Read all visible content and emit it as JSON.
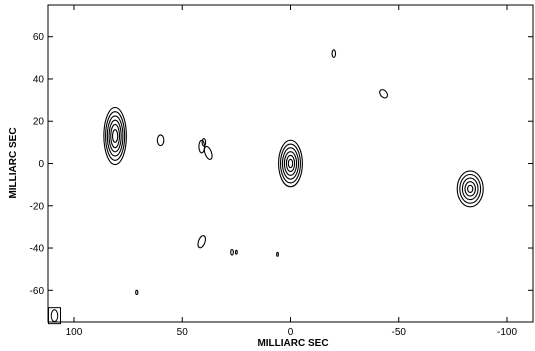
{
  "chart_data": {
    "type": "contour",
    "xlabel": "MILLIARC SEC",
    "ylabel": "MILLIARC SEC",
    "xlim": [
      112,
      -112
    ],
    "ylim": [
      -75,
      75
    ],
    "x_ticks": [
      100,
      50,
      0,
      -50,
      -100
    ],
    "y_ticks": [
      60,
      40,
      20,
      0,
      -20,
      -40,
      -60
    ],
    "x_tick_labels": [
      "100",
      "50",
      "0",
      "-50",
      "-100"
    ],
    "y_tick_labels": [
      "60",
      "40",
      "20",
      "0",
      "-20",
      "-40",
      "-60"
    ],
    "grid": false,
    "components": [
      {
        "x": 81,
        "y": 13,
        "rx_levels": [
          5.2,
          4.4,
          3.6,
          2.8,
          2.0,
          1.2
        ],
        "ry_levels": [
          13.5,
          11.5,
          9.5,
          7.5,
          5.5,
          3.0
        ],
        "rotation": 0
      },
      {
        "x": 0,
        "y": 0,
        "rx_levels": [
          5.5,
          4.6,
          3.7,
          2.8,
          1.9,
          1.0
        ],
        "ry_levels": [
          11.0,
          9.2,
          7.4,
          5.6,
          3.8,
          2.0
        ],
        "rotation": 0
      },
      {
        "x": -83,
        "y": -12,
        "rx_levels": [
          6.0,
          4.8,
          3.6,
          2.4,
          1.2
        ],
        "ry_levels": [
          8.5,
          6.8,
          5.1,
          3.4,
          1.7
        ],
        "rotation": 0
      },
      {
        "x": 60,
        "y": 11,
        "rx_levels": [
          1.5
        ],
        "ry_levels": [
          2.5
        ],
        "rotation": 0
      },
      {
        "x": 41,
        "y": 8,
        "rx_levels": [
          1.3
        ],
        "ry_levels": [
          3.0
        ],
        "rotation": 0
      },
      {
        "x": 38,
        "y": 5,
        "rx_levels": [
          1.5
        ],
        "ry_levels": [
          3.2
        ],
        "rotation": -20
      },
      {
        "x": 40,
        "y": 10,
        "rx_levels": [
          0.8
        ],
        "ry_levels": [
          1.8
        ],
        "rotation": 0
      },
      {
        "x": 41,
        "y": -37,
        "rx_levels": [
          1.5
        ],
        "ry_levels": [
          3.0
        ],
        "rotation": 20
      },
      {
        "x": -43,
        "y": 33,
        "rx_levels": [
          1.5
        ],
        "ry_levels": [
          2.2
        ],
        "rotation": -40
      },
      {
        "x": -20,
        "y": 52,
        "rx_levels": [
          0.8
        ],
        "ry_levels": [
          1.8
        ],
        "rotation": 0
      },
      {
        "x": 27,
        "y": -42,
        "rx_levels": [
          0.6
        ],
        "ry_levels": [
          1.3
        ],
        "rotation": 0
      },
      {
        "x": 25,
        "y": -42,
        "rx_levels": [
          0.4
        ],
        "ry_levels": [
          0.9
        ],
        "rotation": 0
      },
      {
        "x": 6,
        "y": -43,
        "rx_levels": [
          0.4
        ],
        "ry_levels": [
          0.9
        ],
        "rotation": 0
      },
      {
        "x": 71,
        "y": -61,
        "rx_levels": [
          0.5
        ],
        "ry_levels": [
          1.0
        ],
        "rotation": 0
      }
    ],
    "beam": {
      "x": 109,
      "y": -72,
      "rx": 1.5,
      "ry": 2.8
    }
  }
}
